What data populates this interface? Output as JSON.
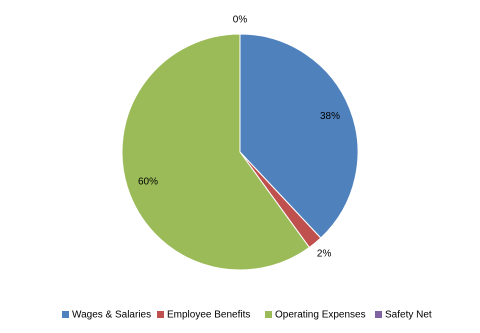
{
  "chart_data": {
    "type": "pie",
    "categories": [
      "Wages & Salaries",
      "Employee Benefits",
      "Operating Expenses",
      "Safety Net"
    ],
    "values": [
      38,
      2,
      60,
      0
    ],
    "value_labels": [
      "38%",
      "2%",
      "60%",
      "0%"
    ],
    "colors": [
      "#4f81bd",
      "#c0504d",
      "#9bbb59",
      "#8064a2"
    ],
    "legend": "bottom"
  }
}
